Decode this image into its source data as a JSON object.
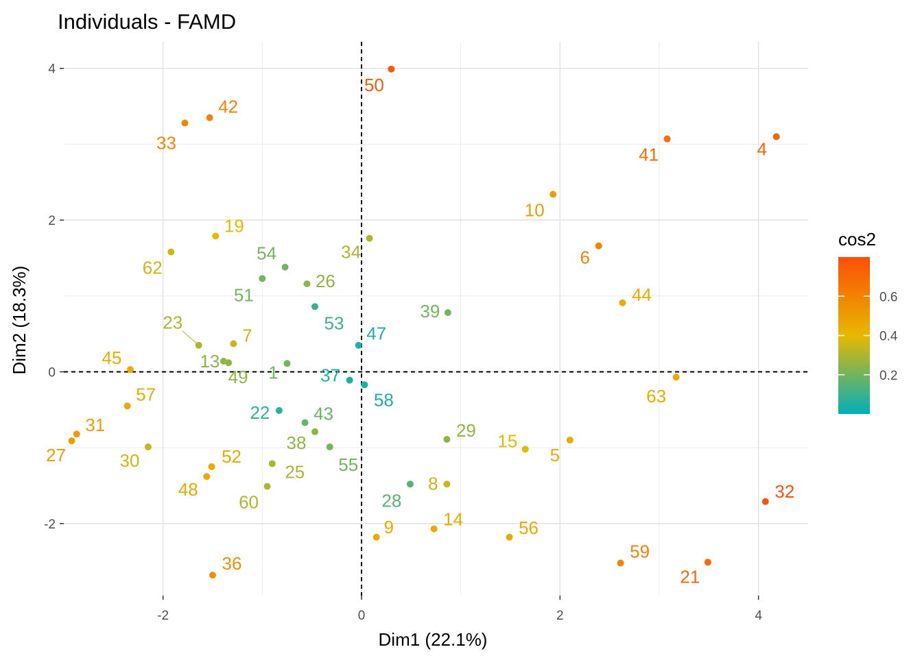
{
  "chart_data": {
    "type": "scatter",
    "title": "Individuals - FAMD",
    "xlabel": "Dim1 (22.1%)",
    "ylabel": "Dim2 (18.3%)",
    "xlim": [
      -3.0,
      4.5
    ],
    "ylim": [
      -2.95,
      4.35
    ],
    "x_ticks": [
      -2,
      0,
      2,
      4
    ],
    "y_ticks": [
      -2,
      0,
      2,
      4
    ],
    "grid": true,
    "reference_lines": {
      "x": 0,
      "y": 0,
      "style": "dashed"
    },
    "legend": {
      "title": "cos2",
      "position": "right",
      "ticks": [
        0.2,
        0.4,
        0.6
      ],
      "range": [
        0.0,
        0.8
      ],
      "colors": [
        "#00AFBB",
        "#E7B800",
        "#FC4E07"
      ]
    },
    "points": [
      {
        "label": "50",
        "x": 0.3,
        "y": 3.99,
        "cos2": 0.75
      },
      {
        "label": "42",
        "x": -1.53,
        "y": 3.35,
        "cos2": 0.6
      },
      {
        "label": "33",
        "x": -1.78,
        "y": 3.28,
        "cos2": 0.58
      },
      {
        "label": "41",
        "x": 3.08,
        "y": 3.07,
        "cos2": 0.68
      },
      {
        "label": "4",
        "x": 4.18,
        "y": 3.1,
        "cos2": 0.72
      },
      {
        "label": "10",
        "x": 1.93,
        "y": 2.34,
        "cos2": 0.5
      },
      {
        "label": "19",
        "x": -1.47,
        "y": 1.79,
        "cos2": 0.4
      },
      {
        "label": "62",
        "x": -1.92,
        "y": 1.58,
        "cos2": 0.35
      },
      {
        "label": "34",
        "x": 0.08,
        "y": 1.76,
        "cos2": 0.3
      },
      {
        "label": "6",
        "x": 2.39,
        "y": 1.66,
        "cos2": 0.6
      },
      {
        "label": "54",
        "x": -0.77,
        "y": 1.38,
        "cos2": 0.2
      },
      {
        "label": "51",
        "x": -1.0,
        "y": 1.23,
        "cos2": 0.2
      },
      {
        "label": "26",
        "x": -0.55,
        "y": 1.16,
        "cos2": 0.25
      },
      {
        "label": "44",
        "x": 2.63,
        "y": 0.91,
        "cos2": 0.45
      },
      {
        "label": "53",
        "x": -0.47,
        "y": 0.86,
        "cos2": 0.1
      },
      {
        "label": "39",
        "x": 0.87,
        "y": 0.78,
        "cos2": 0.2
      },
      {
        "label": "23",
        "x": -1.64,
        "y": 0.35,
        "cos2": 0.3
      },
      {
        "label": "7",
        "x": -1.29,
        "y": 0.37,
        "cos2": 0.35
      },
      {
        "label": "13",
        "x": -1.39,
        "y": 0.14,
        "cos2": 0.25
      },
      {
        "label": "49",
        "x": -1.34,
        "y": 0.12,
        "cos2": 0.25
      },
      {
        "label": "1",
        "x": -0.75,
        "y": 0.11,
        "cos2": 0.2
      },
      {
        "label": "47",
        "x": -0.03,
        "y": 0.35,
        "cos2": 0.05
      },
      {
        "label": "45",
        "x": -2.33,
        "y": 0.03,
        "cos2": 0.45
      },
      {
        "label": "37",
        "x": -0.12,
        "y": -0.11,
        "cos2": 0.05
      },
      {
        "label": "58",
        "x": 0.03,
        "y": -0.17,
        "cos2": 0.05
      },
      {
        "label": "63",
        "x": 3.17,
        "y": -0.07,
        "cos2": 0.45
      },
      {
        "label": "57",
        "x": -2.36,
        "y": -0.45,
        "cos2": 0.45
      },
      {
        "label": "22",
        "x": -0.83,
        "y": -0.51,
        "cos2": 0.08
      },
      {
        "label": "43",
        "x": -0.57,
        "y": -0.67,
        "cos2": 0.18
      },
      {
        "label": "38",
        "x": -0.47,
        "y": -0.79,
        "cos2": 0.25
      },
      {
        "label": "31",
        "x": -2.87,
        "y": -0.82,
        "cos2": 0.5
      },
      {
        "label": "29",
        "x": 0.86,
        "y": -0.89,
        "cos2": 0.25
      },
      {
        "label": "5",
        "x": 2.1,
        "y": -0.9,
        "cos2": 0.45
      },
      {
        "label": "27",
        "x": -2.92,
        "y": -0.91,
        "cos2": 0.5
      },
      {
        "label": "55",
        "x": -0.32,
        "y": -0.99,
        "cos2": 0.2
      },
      {
        "label": "30",
        "x": -2.15,
        "y": -0.99,
        "cos2": 0.35
      },
      {
        "label": "15",
        "x": 1.65,
        "y": -1.02,
        "cos2": 0.4
      },
      {
        "label": "25",
        "x": -0.9,
        "y": -1.21,
        "cos2": 0.3
      },
      {
        "label": "52",
        "x": -1.51,
        "y": -1.25,
        "cos2": 0.45
      },
      {
        "label": "48",
        "x": -1.56,
        "y": -1.38,
        "cos2": 0.45
      },
      {
        "label": "28",
        "x": 0.49,
        "y": -1.48,
        "cos2": 0.15
      },
      {
        "label": "8",
        "x": 0.86,
        "y": -1.48,
        "cos2": 0.35
      },
      {
        "label": "60",
        "x": -0.95,
        "y": -1.51,
        "cos2": 0.3
      },
      {
        "label": "32",
        "x": 4.07,
        "y": -1.71,
        "cos2": 0.78
      },
      {
        "label": "14",
        "x": 0.73,
        "y": -2.07,
        "cos2": 0.45
      },
      {
        "label": "9",
        "x": 0.15,
        "y": -2.18,
        "cos2": 0.45
      },
      {
        "label": "56",
        "x": 1.49,
        "y": -2.18,
        "cos2": 0.45
      },
      {
        "label": "59",
        "x": 2.61,
        "y": -2.52,
        "cos2": 0.6
      },
      {
        "label": "21",
        "x": 3.49,
        "y": -2.51,
        "cos2": 0.7
      },
      {
        "label": "36",
        "x": -1.5,
        "y": -2.68,
        "cos2": 0.55
      }
    ]
  }
}
